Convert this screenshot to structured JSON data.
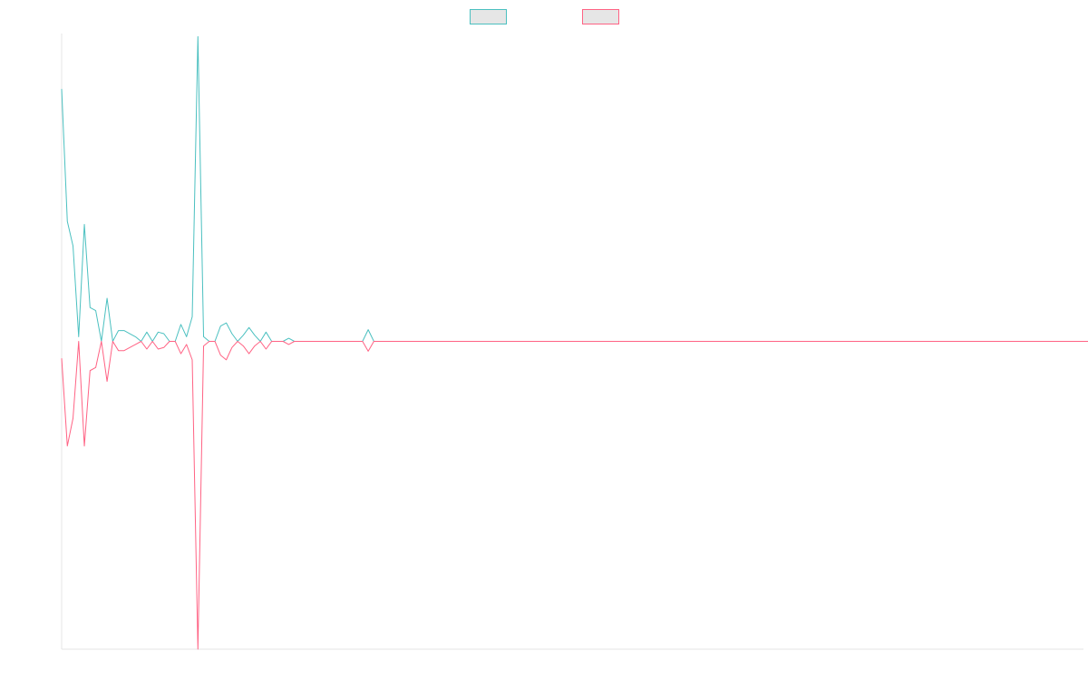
{
  "chart_data": {
    "type": "line",
    "title": "",
    "xlabel": "",
    "ylabel": "",
    "grid": false,
    "legend_position": "top-center",
    "x_range": [
      0,
      180
    ],
    "y_range": [
      -1,
      1
    ],
    "legend_fill": "#e6e6e6",
    "colors": [
      "#4bc0c0",
      "#ff6384"
    ],
    "series": [
      {
        "values": [
          0.82,
          0.39,
          0.31,
          0.015,
          0.38,
          0.11,
          0.1,
          0.0,
          0.14,
          0.0,
          0.035,
          0.035,
          0.025,
          0.015,
          0.0,
          0.03,
          0.0,
          0.03,
          0.025,
          0.0,
          0.0,
          0.055,
          0.015,
          0.08,
          0.99,
          0.015,
          0.0,
          0.0,
          0.05,
          0.06,
          0.025,
          0.0,
          0.02,
          0.045,
          0.02,
          0.0,
          0.03,
          0.0,
          0.0,
          0.0,
          0.01,
          0.0,
          0.0,
          0.0,
          0.0,
          0.0,
          0.0,
          0.0,
          0.0,
          0.0,
          0.0,
          0.0,
          0.0,
          0.0,
          0.038,
          0.0,
          0.0,
          0.0,
          0.0,
          0.0,
          0.0,
          0.0,
          0.0,
          0.0,
          0.0,
          0.0,
          0.0,
          0.0,
          0.0,
          0.0,
          0.0,
          0.0,
          0.0,
          0.0,
          0.0,
          0.0,
          0.0,
          0.0,
          0.0,
          0.0,
          0.0,
          0.0,
          0.0,
          0.0,
          0.0,
          0.0,
          0.0,
          0.0,
          0.0,
          0.0,
          0.0,
          0.0,
          0.0,
          0.0,
          0.0,
          0.0,
          0.0,
          0.0,
          0.0,
          0.0,
          0.0,
          0.0,
          0.0,
          0.0,
          0.0,
          0.0,
          0.0,
          0.0,
          0.0,
          0.0,
          0.0,
          0.0,
          0.0,
          0.0,
          0.0,
          0.0,
          0.0,
          0.0,
          0.0,
          0.0,
          0.0,
          0.0,
          0.0,
          0.0,
          0.0,
          0.0,
          0.0,
          0.0,
          0.0,
          0.0,
          0.0,
          0.0,
          0.0,
          0.0,
          0.0,
          0.0,
          0.0,
          0.0,
          0.0,
          0.0,
          0.0,
          0.0,
          0.0,
          0.0,
          0.0,
          0.0,
          0.0,
          0.0,
          0.0,
          0.0,
          0.0,
          0.0,
          0.0,
          0.0,
          0.0,
          0.0,
          0.0,
          0.0,
          0.0,
          0.0,
          0.0,
          0.0,
          0.0,
          0.0,
          0.0,
          0.0,
          0.0,
          0.0,
          0.0,
          0.0,
          0.0,
          0.0,
          0.0,
          0.0,
          0.0,
          0.0,
          0.0,
          0.0,
          0.0,
          0.0,
          0.0,
          0.0,
          0.0,
          0.0,
          0.0
        ]
      },
      {
        "values": [
          -0.055,
          -0.34,
          -0.25,
          0.0,
          -0.34,
          -0.095,
          -0.085,
          0.0,
          -0.13,
          0.0,
          -0.03,
          -0.03,
          -0.02,
          -0.01,
          0.0,
          -0.025,
          0.0,
          -0.025,
          -0.02,
          0.0,
          0.0,
          -0.04,
          -0.01,
          -0.06,
          -1.0,
          -0.015,
          0.0,
          0.0,
          -0.045,
          -0.06,
          -0.02,
          0.0,
          -0.015,
          -0.04,
          -0.015,
          0.0,
          -0.025,
          0.0,
          0.0,
          0.0,
          -0.01,
          0.0,
          0.0,
          0.0,
          0.0,
          0.0,
          0.0,
          0.0,
          0.0,
          0.0,
          0.0,
          0.0,
          0.0,
          0.0,
          -0.032,
          0.0,
          0.0,
          0.0,
          0.0,
          0.0,
          0.0,
          0.0,
          0.0,
          0.0,
          0.0,
          0.0,
          0.0,
          0.0,
          0.0,
          0.0,
          0.0,
          0.0,
          0.0,
          0.0,
          0.0,
          0.0,
          0.0,
          0.0,
          0.0,
          0.0,
          0.0,
          0.0,
          0.0,
          0.0,
          0.0,
          0.0,
          0.0,
          0.0,
          0.0,
          0.0,
          0.0,
          0.0,
          0.0,
          0.0,
          0.0,
          0.0,
          0.0,
          0.0,
          0.0,
          0.0,
          0.0,
          0.0,
          0.0,
          0.0,
          0.0,
          0.0,
          0.0,
          0.0,
          0.0,
          0.0,
          0.0,
          0.0,
          0.0,
          0.0,
          0.0,
          0.0,
          0.0,
          0.0,
          0.0,
          0.0,
          0.0,
          0.0,
          0.0,
          0.0,
          0.0,
          0.0,
          0.0,
          0.0,
          0.0,
          0.0,
          0.0,
          0.0,
          0.0,
          0.0,
          0.0,
          0.0,
          0.0,
          0.0,
          0.0,
          0.0,
          0.0,
          0.0,
          0.0,
          0.0,
          0.0,
          0.0,
          0.0,
          0.0,
          0.0,
          0.0,
          0.0,
          0.0,
          0.0,
          0.0,
          0.0,
          0.0,
          0.0,
          0.0,
          0.0,
          0.0,
          0.0,
          0.0,
          0.0,
          0.0,
          0.0,
          0.0,
          0.0,
          0.0,
          0.0,
          0.0,
          0.0,
          0.0,
          0.0,
          0.0,
          0.0,
          0.0,
          0.0,
          0.0,
          0.0,
          0.0,
          0.0,
          0.0,
          0.0,
          0.0,
          0.0,
          0.0,
          0.0
        ]
      }
    ]
  }
}
